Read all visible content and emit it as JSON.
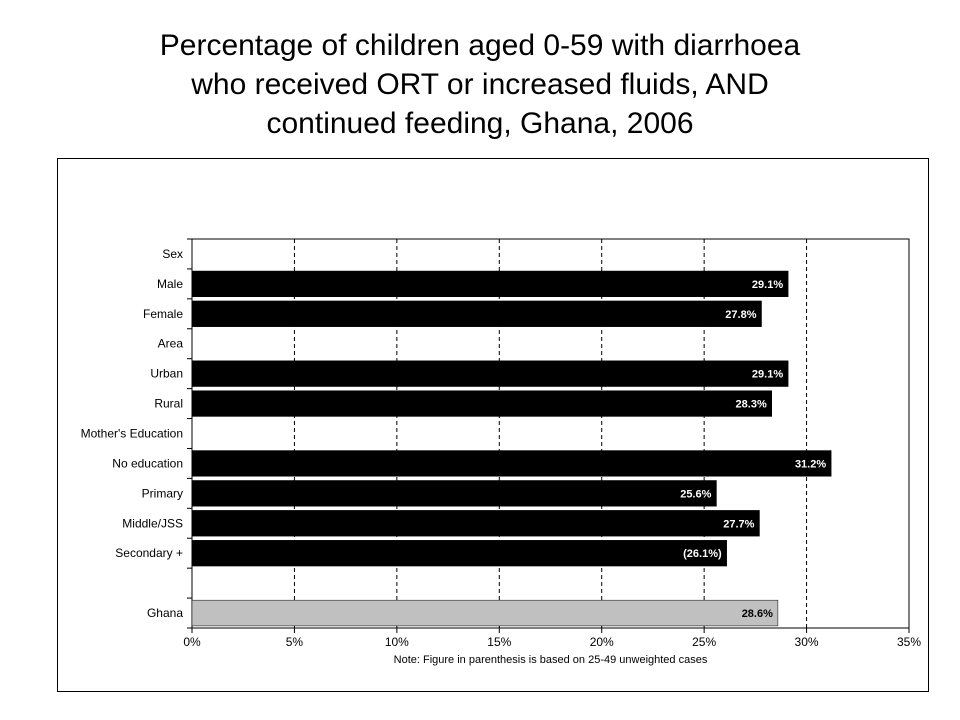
{
  "title_lines": [
    "Percentage of children aged 0-59 with diarrhoea",
    "who received ORT or increased fluids, AND",
    "continued feeding, Ghana, 2006"
  ],
  "chart_data": {
    "type": "bar",
    "orientation": "horizontal",
    "title": "Percentage of children aged 0-59 with diarrhoea who received ORT or increased fluids, AND continued feeding, Ghana, 2006",
    "categories": [
      "Sex",
      "Male",
      "Female",
      "Area",
      "Urban",
      "Rural",
      "Mother's Education",
      "No education",
      "Primary",
      "Middle/JSS",
      "Secondary +",
      "",
      "Ghana"
    ],
    "values": [
      null,
      29.1,
      27.8,
      null,
      29.1,
      28.3,
      null,
      31.2,
      25.6,
      27.7,
      26.1,
      null,
      28.6
    ],
    "value_labels": [
      "",
      "29.1%",
      "27.8%",
      "",
      "29.1%",
      "28.3%",
      "",
      "31.2%",
      "25.6%",
      "27.7%",
      "(26.1%)",
      "",
      "28.6%"
    ],
    "bar_colors": [
      "#000000",
      "#000000",
      "#000000",
      "#000000",
      "#000000",
      "#000000",
      "#000000",
      "#000000",
      "#000000",
      "#000000",
      "#000000",
      "#000000",
      "#c0c0c0"
    ],
    "label_colors": [
      "#ffffff",
      "#ffffff",
      "#ffffff",
      "#ffffff",
      "#ffffff",
      "#ffffff",
      "#ffffff",
      "#ffffff",
      "#ffffff",
      "#ffffff",
      "#ffffff",
      "#ffffff",
      "#000000"
    ],
    "xlim": [
      0,
      35
    ],
    "xticks": [
      0,
      5,
      10,
      15,
      20,
      25,
      30,
      35
    ],
    "xtick_labels": [
      "0%",
      "5%",
      "10%",
      "15%",
      "20%",
      "25%",
      "30%",
      "35%"
    ],
    "grid": "vertical-dashed",
    "note": "Note: Figure in parenthesis is based on 25-49 unweighted cases"
  }
}
